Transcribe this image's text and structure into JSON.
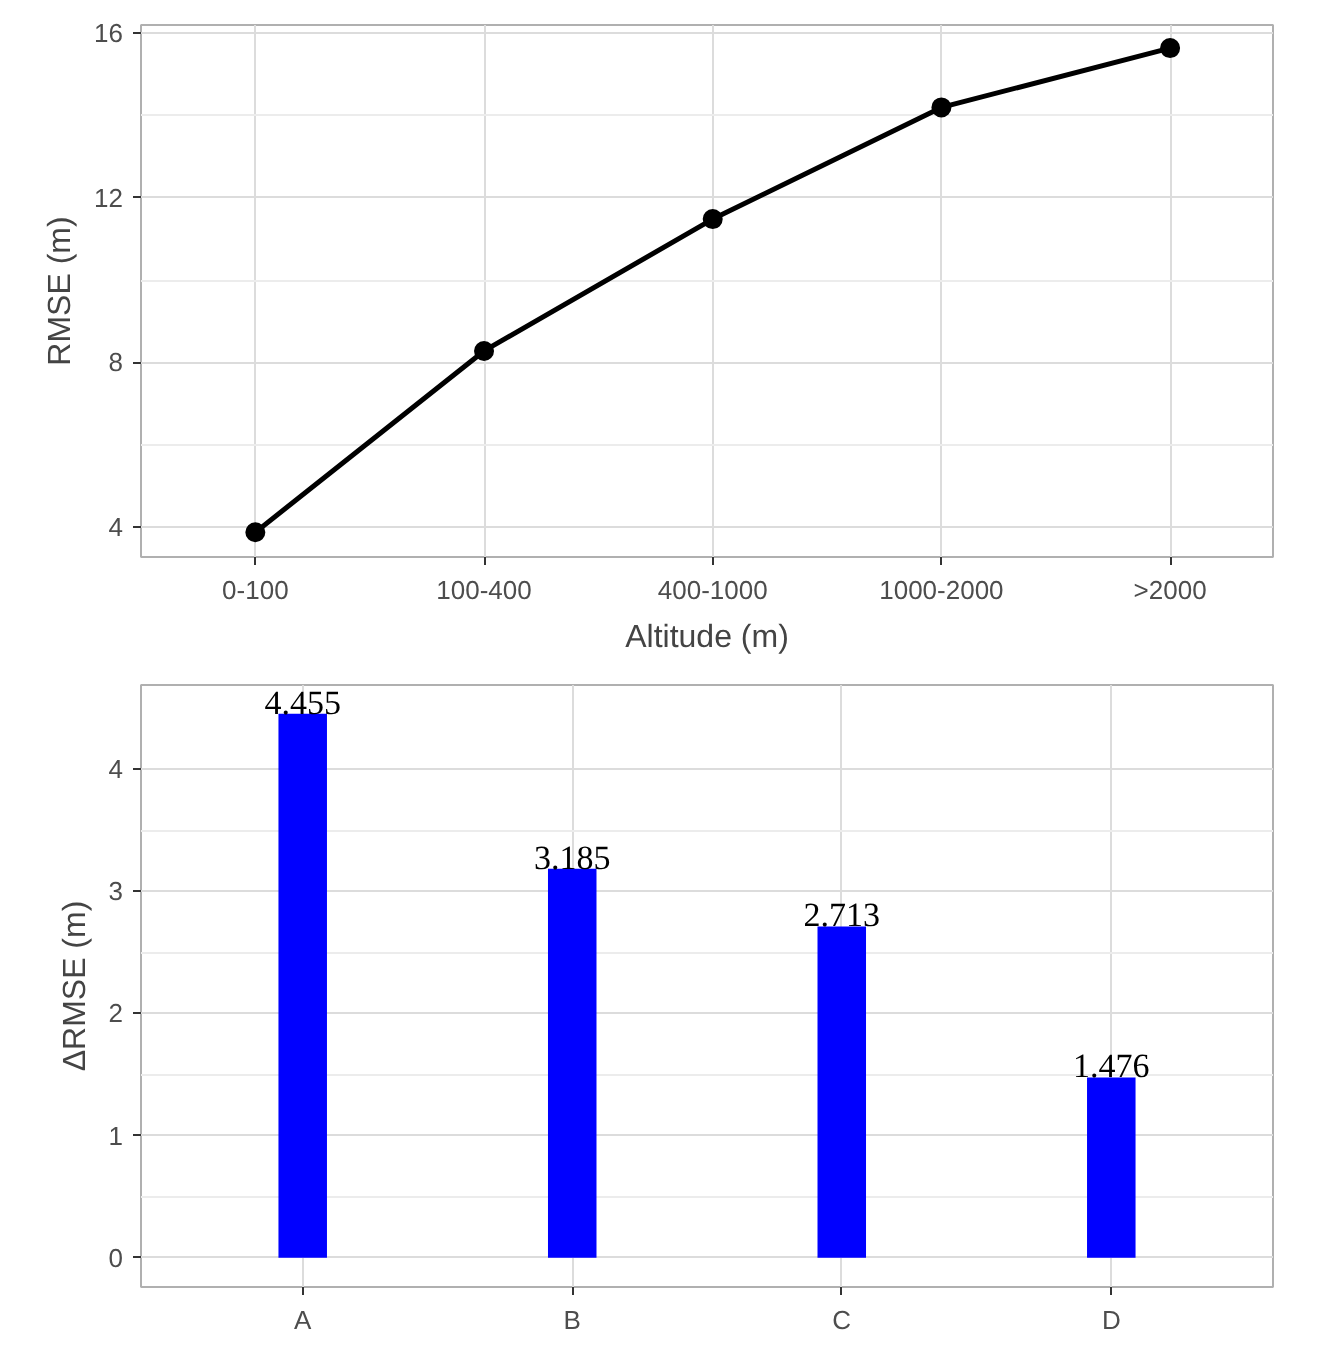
{
  "chart_data": [
    {
      "type": "line",
      "xlabel": "Altitude (m)",
      "ylabel": "RMSE (m)",
      "categories": [
        "0-100",
        "100-400",
        "400-1000",
        "1000-2000",
        ">2000"
      ],
      "series": [
        {
          "color": "#000000",
          "values": [
            3.88,
            8.28,
            11.48,
            14.19,
            15.63
          ]
        }
      ],
      "ylim": [
        3.28,
        16.19
      ],
      "yticks": [
        4,
        8,
        12,
        16
      ],
      "grid": true,
      "marker": "circle",
      "line_style": "solid"
    },
    {
      "type": "bar",
      "ylabel": "ΔRMSE (m)",
      "categories": [
        "A",
        "B",
        "C",
        "D"
      ],
      "series": [
        {
          "color": "#0000ff",
          "values": [
            4.455,
            3.185,
            2.713,
            1.476
          ]
        }
      ],
      "ylim": [
        -0.24,
        4.69
      ],
      "yticks": [
        0,
        1,
        2,
        3,
        4
      ],
      "grid": true,
      "data_labels": true
    }
  ]
}
